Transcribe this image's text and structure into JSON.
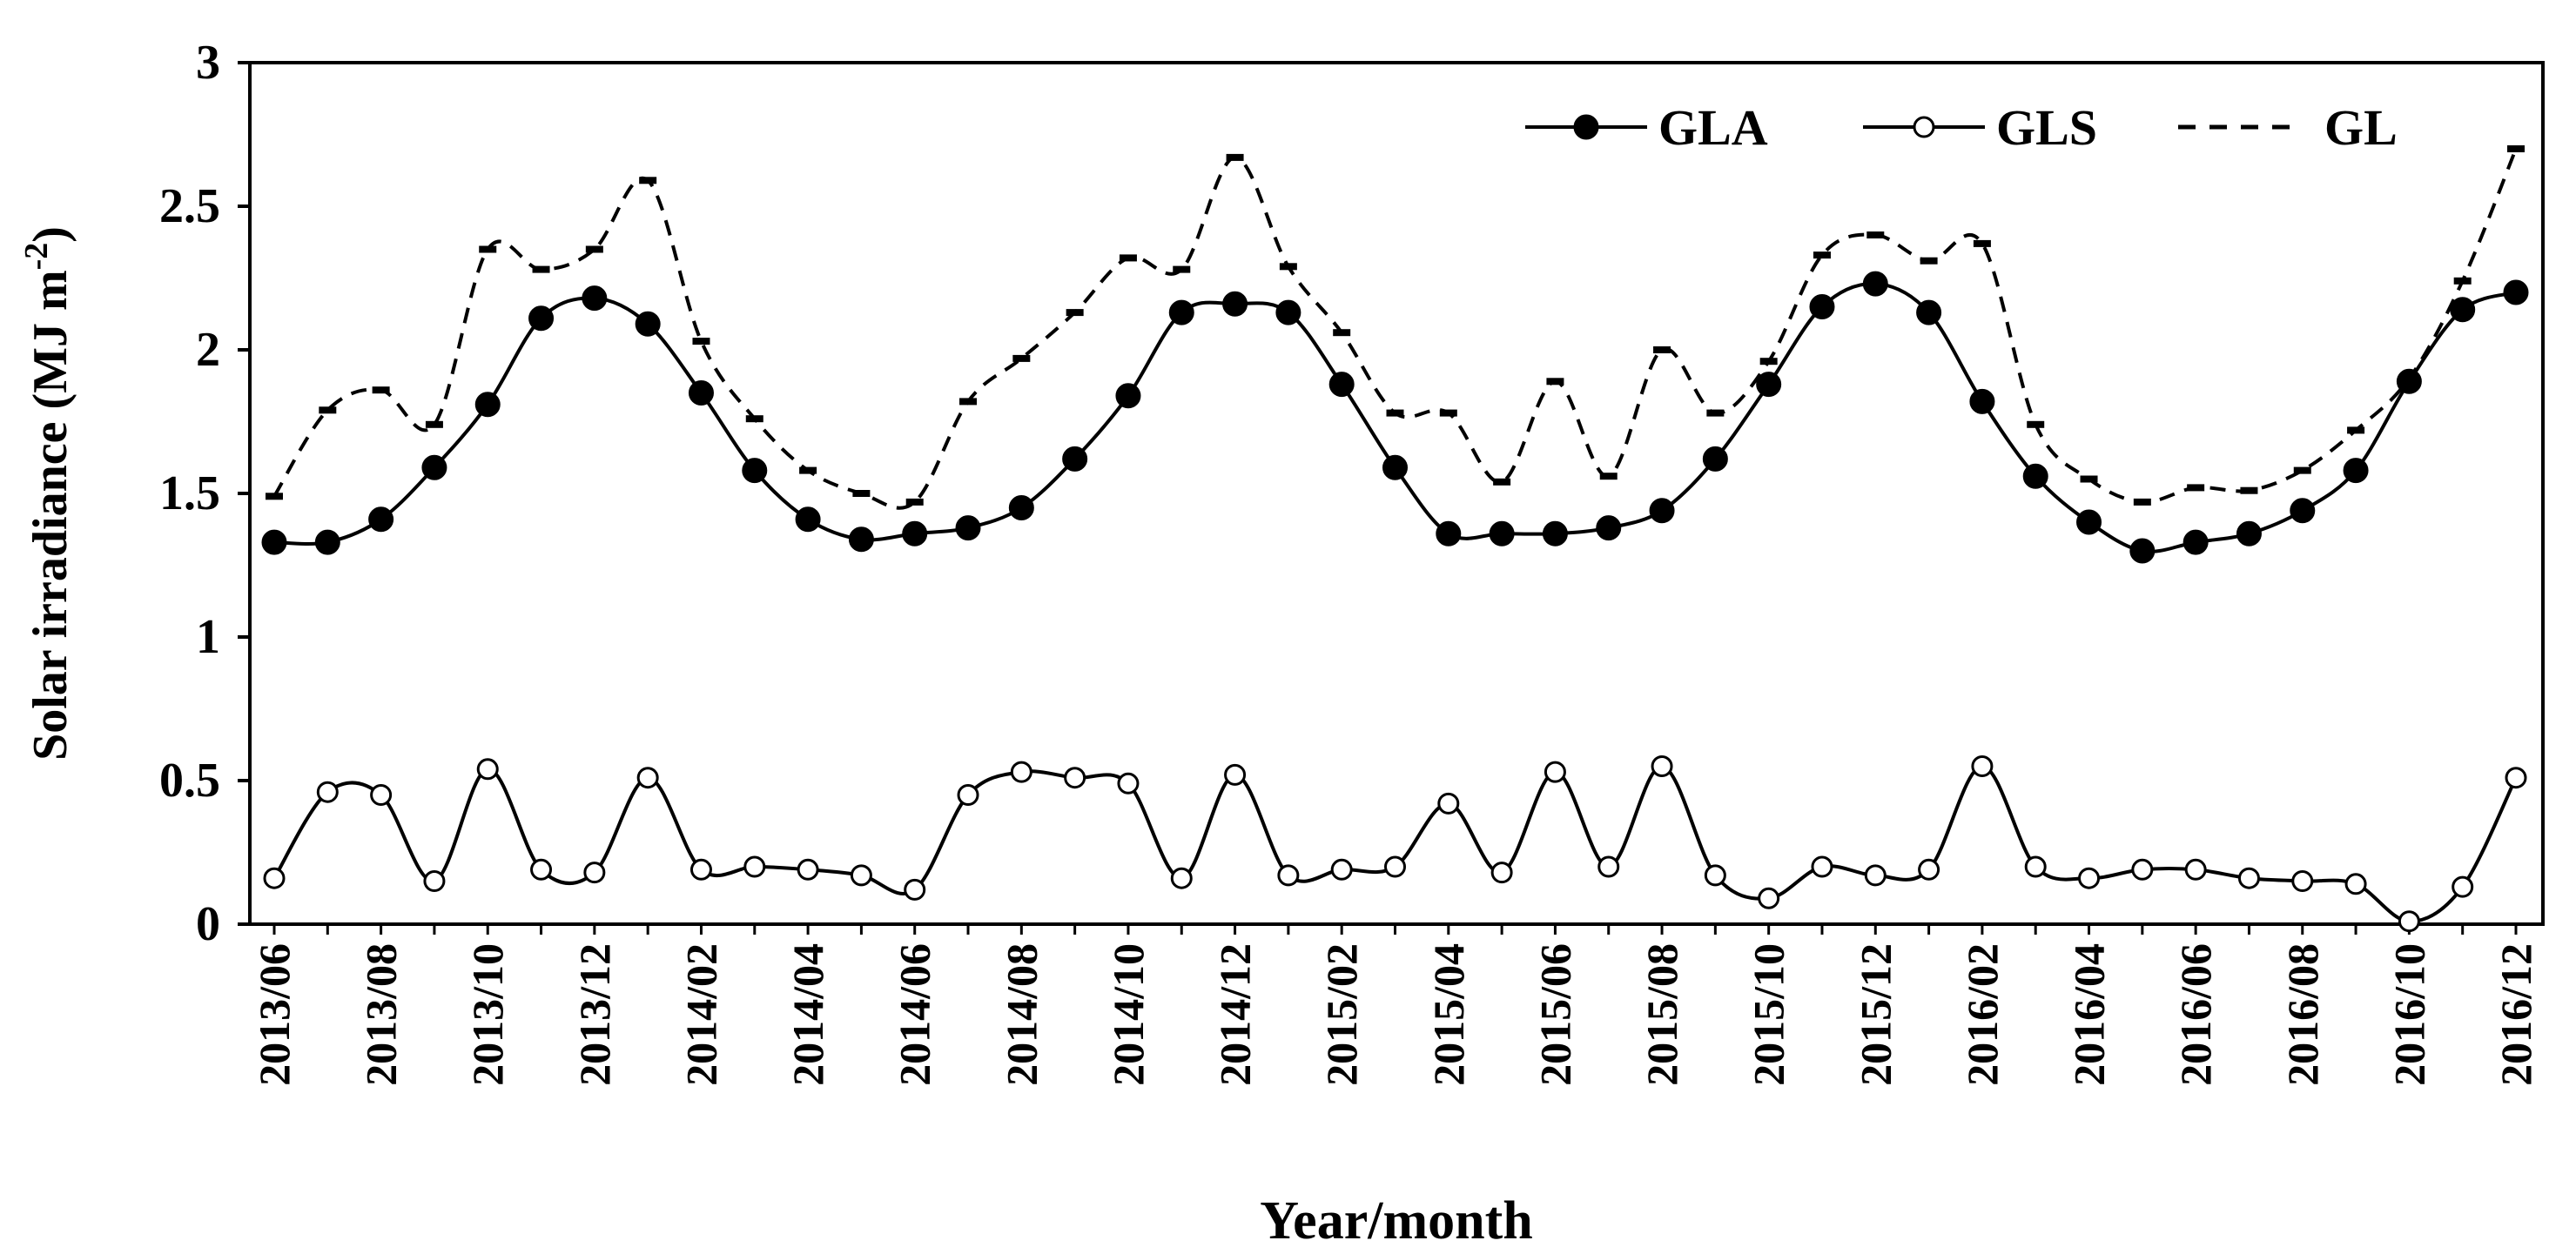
{
  "chart_data": {
    "type": "line",
    "title": "",
    "xlabel": "Year/month",
    "ylabel": "Solar irradiance (MJ m",
    "ylabel_sup": "-2",
    "ylabel_close": ")",
    "ylim": [
      0,
      3
    ],
    "yticks": [
      0,
      0.5,
      1,
      1.5,
      2,
      2.5,
      3
    ],
    "ytick_labels": [
      "0",
      "0.5",
      "1",
      "1.5",
      "2",
      "2.5",
      "3"
    ],
    "grid": false,
    "legend_position": "top-right",
    "x_labels": [
      "2013/06",
      "2013/08",
      "2013/10",
      "2013/12",
      "2014/02",
      "2014/04",
      "2014/06",
      "2014/08",
      "2014/10",
      "2014/12",
      "2015/02",
      "2015/04",
      "2015/06",
      "2015/08",
      "2015/10",
      "2015/12",
      "2016/02",
      "2016/04",
      "2016/06",
      "2016/08",
      "2016/10",
      "2016/12"
    ],
    "categories": [
      "2013/06",
      "2013/07",
      "2013/08",
      "2013/09",
      "2013/10",
      "2013/11",
      "2013/12",
      "2014/01",
      "2014/02",
      "2014/03",
      "2014/04",
      "2014/05",
      "2014/06",
      "2014/07",
      "2014/08",
      "2014/09",
      "2014/10",
      "2014/11",
      "2014/12",
      "2015/01",
      "2015/02",
      "2015/03",
      "2015/04",
      "2015/05",
      "2015/06",
      "2015/07",
      "2015/08",
      "2015/09",
      "2015/10",
      "2015/11",
      "2015/12",
      "2016/01",
      "2016/02",
      "2016/03",
      "2016/04",
      "2016/05",
      "2016/06",
      "2016/07",
      "2016/08",
      "2016/09",
      "2016/10",
      "2016/11",
      "2016/12"
    ],
    "series": [
      {
        "name": "GLA",
        "style": "solid-filled-marker",
        "values": [
          1.33,
          1.33,
          1.41,
          1.59,
          1.81,
          2.11,
          2.18,
          2.09,
          1.85,
          1.58,
          1.41,
          1.34,
          1.36,
          1.38,
          1.45,
          1.62,
          1.84,
          2.13,
          2.16,
          2.13,
          1.88,
          1.59,
          1.36,
          1.36,
          1.36,
          1.38,
          1.44,
          1.62,
          1.88,
          2.15,
          2.23,
          2.13,
          1.82,
          1.56,
          1.4,
          1.3,
          1.33,
          1.36,
          1.44,
          1.58,
          1.89,
          2.14,
          2.2
        ]
      },
      {
        "name": "GLS",
        "style": "solid-open-marker",
        "values": [
          0.16,
          0.46,
          0.45,
          0.15,
          0.54,
          0.19,
          0.18,
          0.51,
          0.19,
          0.2,
          0.19,
          0.17,
          0.12,
          0.45,
          0.53,
          0.51,
          0.49,
          0.16,
          0.52,
          0.17,
          0.19,
          0.2,
          0.42,
          0.18,
          0.53,
          0.2,
          0.55,
          0.17,
          0.09,
          0.2,
          0.17,
          0.19,
          0.55,
          0.2,
          0.16,
          0.19,
          0.19,
          0.16,
          0.15,
          0.14,
          0.01,
          0.13,
          0.51
        ]
      },
      {
        "name": "GL",
        "style": "dashed",
        "values": [
          1.49,
          1.79,
          1.86,
          1.74,
          2.35,
          2.28,
          2.35,
          2.59,
          2.03,
          1.76,
          1.58,
          1.5,
          1.47,
          1.82,
          1.97,
          2.13,
          2.32,
          2.28,
          2.67,
          2.29,
          2.06,
          1.78,
          1.78,
          1.54,
          1.89,
          1.56,
          2.0,
          1.78,
          1.96,
          2.33,
          2.4,
          2.31,
          2.37,
          1.74,
          1.55,
          1.47,
          1.52,
          1.51,
          1.58,
          1.72,
          1.9,
          2.24,
          2.7
        ]
      }
    ]
  }
}
